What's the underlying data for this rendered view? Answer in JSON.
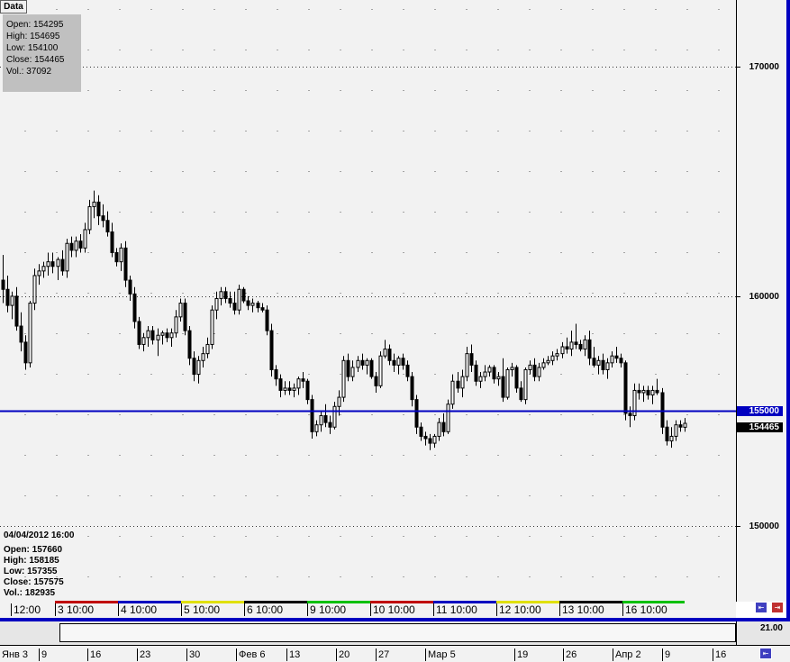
{
  "tab": {
    "label": "Data"
  },
  "info_box": {
    "open": "Open: 154295",
    "high": "High: 154695",
    "low": "Low: 154100",
    "close": "Close: 154465",
    "vol": "Vol.: 37092"
  },
  "bar_info": {
    "datetime": "04/04/2012 16:00",
    "open": "Open: 157660",
    "high": "High: 158185",
    "low": "Low: 157355",
    "close": "Close: 157575",
    "vol": "Vol.: 182935"
  },
  "price_tags": {
    "level": "155000",
    "last": "154465"
  },
  "indicator_value": "21.00",
  "colors": {
    "level_line": "#0000c0",
    "axis_highlight": "#0000c0",
    "last_tag": "#000000",
    "frame": "#0000c0"
  },
  "chart_data": {
    "type": "candlestick",
    "y_ticks": [
      150000,
      155000,
      160000,
      170000
    ],
    "ylim": [
      146700,
      172900
    ],
    "horizontal_line": 155000,
    "last_price": 154465,
    "x_session_labels": [
      "12:00",
      "3 10:00",
      "4 10:00",
      "5 10:00",
      "6 10:00",
      "9 10:00",
      "10 10:00",
      "11 10:00",
      "12 10:00",
      "13 10:00",
      "16 10:00"
    ],
    "x_date_labels": [
      "Янв 3",
      "9",
      "16",
      "23",
      "30",
      "Фев 6",
      "13",
      "20",
      "27",
      "Мар 5",
      "19",
      "26",
      "Апр 2",
      "9",
      "16"
    ],
    "session_colors": [
      "#c00000",
      "#0000c0",
      "#e0e000",
      "#000000",
      "#00c000",
      "#c00000",
      "#0000c0",
      "#e0e000",
      "#000000",
      "#00c000"
    ],
    "candles": [
      {
        "o": 160700,
        "h": 161800,
        "l": 159700,
        "c": 160300
      },
      {
        "o": 160300,
        "h": 160900,
        "l": 159300,
        "c": 159600
      },
      {
        "o": 159600,
        "h": 160200,
        "l": 159000,
        "c": 160000
      },
      {
        "o": 160000,
        "h": 160400,
        "l": 158500,
        "c": 158700
      },
      {
        "o": 158700,
        "h": 159300,
        "l": 157600,
        "c": 158000
      },
      {
        "o": 158000,
        "h": 158300,
        "l": 156800,
        "c": 157100
      },
      {
        "o": 157100,
        "h": 159800,
        "l": 156900,
        "c": 159700
      },
      {
        "o": 159700,
        "h": 161200,
        "l": 159400,
        "c": 160900
      },
      {
        "o": 160900,
        "h": 161400,
        "l": 160500,
        "c": 161100
      },
      {
        "o": 161100,
        "h": 161500,
        "l": 160800,
        "c": 161300
      },
      {
        "o": 161300,
        "h": 161900,
        "l": 160900,
        "c": 161500
      },
      {
        "o": 161500,
        "h": 161900,
        "l": 161000,
        "c": 161300
      },
      {
        "o": 161300,
        "h": 161700,
        "l": 160700,
        "c": 161600
      },
      {
        "o": 161600,
        "h": 162000,
        "l": 160900,
        "c": 161100
      },
      {
        "o": 161100,
        "h": 162500,
        "l": 160800,
        "c": 162300
      },
      {
        "o": 162300,
        "h": 162600,
        "l": 161700,
        "c": 162000
      },
      {
        "o": 162000,
        "h": 162600,
        "l": 161700,
        "c": 162400
      },
      {
        "o": 162400,
        "h": 162700,
        "l": 161900,
        "c": 162100
      },
      {
        "o": 162100,
        "h": 163200,
        "l": 161900,
        "c": 162900
      },
      {
        "o": 162900,
        "h": 164200,
        "l": 162700,
        "c": 163900
      },
      {
        "o": 163900,
        "h": 164600,
        "l": 163400,
        "c": 164100
      },
      {
        "o": 164100,
        "h": 164400,
        "l": 163100,
        "c": 163500
      },
      {
        "o": 163500,
        "h": 164000,
        "l": 163000,
        "c": 163300
      },
      {
        "o": 163300,
        "h": 163700,
        "l": 162600,
        "c": 162800
      },
      {
        "o": 162800,
        "h": 163200,
        "l": 161700,
        "c": 161900
      },
      {
        "o": 161900,
        "h": 162100,
        "l": 161300,
        "c": 161500
      },
      {
        "o": 161500,
        "h": 162300,
        "l": 161100,
        "c": 162100
      },
      {
        "o": 162100,
        "h": 162400,
        "l": 160400,
        "c": 160700
      },
      {
        "o": 160700,
        "h": 160900,
        "l": 159800,
        "c": 160100
      },
      {
        "o": 160100,
        "h": 160400,
        "l": 158600,
        "c": 158900
      },
      {
        "o": 158900,
        "h": 159100,
        "l": 157700,
        "c": 157900
      },
      {
        "o": 157900,
        "h": 158400,
        "l": 157600,
        "c": 158200
      },
      {
        "o": 158200,
        "h": 158700,
        "l": 157800,
        "c": 158500
      },
      {
        "o": 158500,
        "h": 158700,
        "l": 157900,
        "c": 158100
      },
      {
        "o": 158100,
        "h": 158600,
        "l": 157400,
        "c": 158300
      },
      {
        "o": 158300,
        "h": 158500,
        "l": 157900,
        "c": 158400
      },
      {
        "o": 158400,
        "h": 158600,
        "l": 158000,
        "c": 158200
      },
      {
        "o": 158200,
        "h": 158600,
        "l": 157800,
        "c": 158400
      },
      {
        "o": 158400,
        "h": 159400,
        "l": 158200,
        "c": 159100
      },
      {
        "o": 159100,
        "h": 159900,
        "l": 158900,
        "c": 159700
      },
      {
        "o": 159700,
        "h": 159900,
        "l": 158300,
        "c": 158500
      },
      {
        "o": 158500,
        "h": 158700,
        "l": 157000,
        "c": 157300
      },
      {
        "o": 157300,
        "h": 157600,
        "l": 156300,
        "c": 156600
      },
      {
        "o": 156600,
        "h": 157400,
        "l": 156200,
        "c": 157200
      },
      {
        "o": 157200,
        "h": 157800,
        "l": 156900,
        "c": 157500
      },
      {
        "o": 157500,
        "h": 158200,
        "l": 157300,
        "c": 157900
      },
      {
        "o": 157900,
        "h": 159600,
        "l": 157700,
        "c": 159400
      },
      {
        "o": 159400,
        "h": 160200,
        "l": 159000,
        "c": 159900
      },
      {
        "o": 159900,
        "h": 160400,
        "l": 159600,
        "c": 160200
      },
      {
        "o": 160200,
        "h": 160400,
        "l": 159700,
        "c": 159900
      },
      {
        "o": 159900,
        "h": 160200,
        "l": 159500,
        "c": 159700
      },
      {
        "o": 159700,
        "h": 160200,
        "l": 159200,
        "c": 159400
      },
      {
        "o": 159400,
        "h": 160500,
        "l": 159200,
        "c": 160300
      },
      {
        "o": 160300,
        "h": 160400,
        "l": 159700,
        "c": 159800
      },
      {
        "o": 159800,
        "h": 160000,
        "l": 159400,
        "c": 159600
      },
      {
        "o": 159600,
        "h": 159900,
        "l": 159300,
        "c": 159700
      },
      {
        "o": 159700,
        "h": 159800,
        "l": 159300,
        "c": 159500
      },
      {
        "o": 159500,
        "h": 159700,
        "l": 159300,
        "c": 159400
      },
      {
        "o": 159400,
        "h": 159600,
        "l": 158300,
        "c": 158500
      },
      {
        "o": 158500,
        "h": 158800,
        "l": 156500,
        "c": 156800
      },
      {
        "o": 156800,
        "h": 157000,
        "l": 156100,
        "c": 156400
      },
      {
        "o": 156400,
        "h": 156600,
        "l": 155600,
        "c": 155900
      },
      {
        "o": 155900,
        "h": 156300,
        "l": 155700,
        "c": 156000
      },
      {
        "o": 156000,
        "h": 156300,
        "l": 155700,
        "c": 155900
      },
      {
        "o": 155900,
        "h": 156200,
        "l": 155600,
        "c": 156000
      },
      {
        "o": 156000,
        "h": 156500,
        "l": 155700,
        "c": 156400
      },
      {
        "o": 156400,
        "h": 156700,
        "l": 156000,
        "c": 156300
      },
      {
        "o": 156300,
        "h": 156400,
        "l": 155300,
        "c": 155500
      },
      {
        "o": 155500,
        "h": 155700,
        "l": 153800,
        "c": 154100
      },
      {
        "o": 154100,
        "h": 154600,
        "l": 153900,
        "c": 154400
      },
      {
        "o": 154400,
        "h": 155000,
        "l": 154100,
        "c": 154800
      },
      {
        "o": 154800,
        "h": 155300,
        "l": 154300,
        "c": 154500
      },
      {
        "o": 154500,
        "h": 154800,
        "l": 154000,
        "c": 154300
      },
      {
        "o": 154300,
        "h": 155400,
        "l": 154200,
        "c": 155200
      },
      {
        "o": 155200,
        "h": 155900,
        "l": 154800,
        "c": 155600
      },
      {
        "o": 155600,
        "h": 157400,
        "l": 155400,
        "c": 157200
      },
      {
        "o": 157200,
        "h": 157500,
        "l": 156300,
        "c": 156500
      },
      {
        "o": 156500,
        "h": 157200,
        "l": 156300,
        "c": 156900
      },
      {
        "o": 156900,
        "h": 157400,
        "l": 156700,
        "c": 157200
      },
      {
        "o": 157200,
        "h": 157500,
        "l": 156800,
        "c": 157000
      },
      {
        "o": 157000,
        "h": 157300,
        "l": 156600,
        "c": 157200
      },
      {
        "o": 157200,
        "h": 157300,
        "l": 156400,
        "c": 156500
      },
      {
        "o": 156500,
        "h": 156700,
        "l": 155800,
        "c": 156100
      },
      {
        "o": 156100,
        "h": 157600,
        "l": 156000,
        "c": 157400
      },
      {
        "o": 157400,
        "h": 158100,
        "l": 157300,
        "c": 157700
      },
      {
        "o": 157700,
        "h": 157900,
        "l": 157000,
        "c": 157200
      },
      {
        "o": 157200,
        "h": 157500,
        "l": 156700,
        "c": 157000
      },
      {
        "o": 157000,
        "h": 157400,
        "l": 156600,
        "c": 157300
      },
      {
        "o": 157300,
        "h": 157500,
        "l": 156800,
        "c": 157000
      },
      {
        "o": 157000,
        "h": 157200,
        "l": 156300,
        "c": 156500
      },
      {
        "o": 156500,
        "h": 156700,
        "l": 155200,
        "c": 155500
      },
      {
        "o": 155500,
        "h": 155700,
        "l": 154000,
        "c": 154300
      },
      {
        "o": 154300,
        "h": 154500,
        "l": 153700,
        "c": 153900
      },
      {
        "o": 153900,
        "h": 154100,
        "l": 153500,
        "c": 153800
      },
      {
        "o": 153800,
        "h": 154000,
        "l": 153300,
        "c": 153600
      },
      {
        "o": 153600,
        "h": 154000,
        "l": 153400,
        "c": 153900
      },
      {
        "o": 153900,
        "h": 154700,
        "l": 153700,
        "c": 154500
      },
      {
        "o": 154500,
        "h": 154900,
        "l": 153900,
        "c": 154100
      },
      {
        "o": 154100,
        "h": 155500,
        "l": 154000,
        "c": 155300
      },
      {
        "o": 155300,
        "h": 156600,
        "l": 155100,
        "c": 156300
      },
      {
        "o": 156300,
        "h": 156700,
        "l": 155800,
        "c": 156000
      },
      {
        "o": 156000,
        "h": 156800,
        "l": 155600,
        "c": 156500
      },
      {
        "o": 156500,
        "h": 157800,
        "l": 156300,
        "c": 157500
      },
      {
        "o": 157500,
        "h": 157900,
        "l": 156700,
        "c": 157000
      },
      {
        "o": 157000,
        "h": 157200,
        "l": 156100,
        "c": 156300
      },
      {
        "o": 156300,
        "h": 156700,
        "l": 156000,
        "c": 156500
      },
      {
        "o": 156500,
        "h": 157000,
        "l": 156300,
        "c": 156700
      },
      {
        "o": 156700,
        "h": 157000,
        "l": 156500,
        "c": 156900
      },
      {
        "o": 156900,
        "h": 157000,
        "l": 156200,
        "c": 156400
      },
      {
        "o": 156400,
        "h": 156700,
        "l": 156100,
        "c": 156500
      },
      {
        "o": 156500,
        "h": 157300,
        "l": 155400,
        "c": 155600
      },
      {
        "o": 155600,
        "h": 156900,
        "l": 155500,
        "c": 156800
      },
      {
        "o": 156800,
        "h": 157100,
        "l": 156500,
        "c": 156900
      },
      {
        "o": 156900,
        "h": 157000,
        "l": 155800,
        "c": 156000
      },
      {
        "o": 156000,
        "h": 156300,
        "l": 155400,
        "c": 155500
      },
      {
        "o": 155500,
        "h": 156900,
        "l": 155300,
        "c": 156800
      },
      {
        "o": 156800,
        "h": 157200,
        "l": 156600,
        "c": 157000
      },
      {
        "o": 157000,
        "h": 157300,
        "l": 156300,
        "c": 156500
      },
      {
        "o": 156500,
        "h": 157100,
        "l": 156300,
        "c": 156900
      },
      {
        "o": 156900,
        "h": 157300,
        "l": 156800,
        "c": 157100
      },
      {
        "o": 157100,
        "h": 157400,
        "l": 157000,
        "c": 157200
      },
      {
        "o": 157200,
        "h": 157600,
        "l": 157000,
        "c": 157400
      },
      {
        "o": 157400,
        "h": 157700,
        "l": 157200,
        "c": 157500
      },
      {
        "o": 157500,
        "h": 158000,
        "l": 157300,
        "c": 157800
      },
      {
        "o": 157800,
        "h": 158200,
        "l": 157500,
        "c": 157700
      },
      {
        "o": 157700,
        "h": 158500,
        "l": 157400,
        "c": 158000
      },
      {
        "o": 158000,
        "h": 158800,
        "l": 157700,
        "c": 157900
      },
      {
        "o": 157900,
        "h": 158100,
        "l": 157600,
        "c": 157700
      },
      {
        "o": 157700,
        "h": 158300,
        "l": 157400,
        "c": 158100
      },
      {
        "o": 158100,
        "h": 158500,
        "l": 157000,
        "c": 157300
      },
      {
        "o": 157300,
        "h": 157800,
        "l": 156900,
        "c": 157000
      },
      {
        "o": 157000,
        "h": 157400,
        "l": 156600,
        "c": 157200
      },
      {
        "o": 157200,
        "h": 157500,
        "l": 156600,
        "c": 156800
      },
      {
        "o": 156800,
        "h": 157300,
        "l": 156400,
        "c": 157100
      },
      {
        "o": 157100,
        "h": 157600,
        "l": 156900,
        "c": 157400
      },
      {
        "o": 157400,
        "h": 157800,
        "l": 157100,
        "c": 157300
      },
      {
        "o": 157300,
        "h": 157500,
        "l": 156900,
        "c": 157100
      },
      {
        "o": 157100,
        "h": 157200,
        "l": 154600,
        "c": 154900
      },
      {
        "o": 154900,
        "h": 155200,
        "l": 154300,
        "c": 154800
      },
      {
        "o": 154800,
        "h": 156200,
        "l": 154600,
        "c": 155900
      },
      {
        "o": 155900,
        "h": 156200,
        "l": 155500,
        "c": 155800
      },
      {
        "o": 155800,
        "h": 156100,
        "l": 155400,
        "c": 155900
      },
      {
        "o": 155900,
        "h": 156100,
        "l": 155500,
        "c": 155700
      },
      {
        "o": 155700,
        "h": 156100,
        "l": 155300,
        "c": 155900
      },
      {
        "o": 155900,
        "h": 156400,
        "l": 155700,
        "c": 155800
      },
      {
        "o": 155800,
        "h": 156000,
        "l": 154000,
        "c": 154300
      },
      {
        "o": 154300,
        "h": 154600,
        "l": 153500,
        "c": 153700
      },
      {
        "o": 153700,
        "h": 154300,
        "l": 153400,
        "c": 153900
      },
      {
        "o": 153900,
        "h": 154600,
        "l": 153700,
        "c": 154400
      },
      {
        "o": 154400,
        "h": 154600,
        "l": 154100,
        "c": 154300
      },
      {
        "o": 154295,
        "h": 154695,
        "l": 154100,
        "c": 154465
      }
    ]
  }
}
